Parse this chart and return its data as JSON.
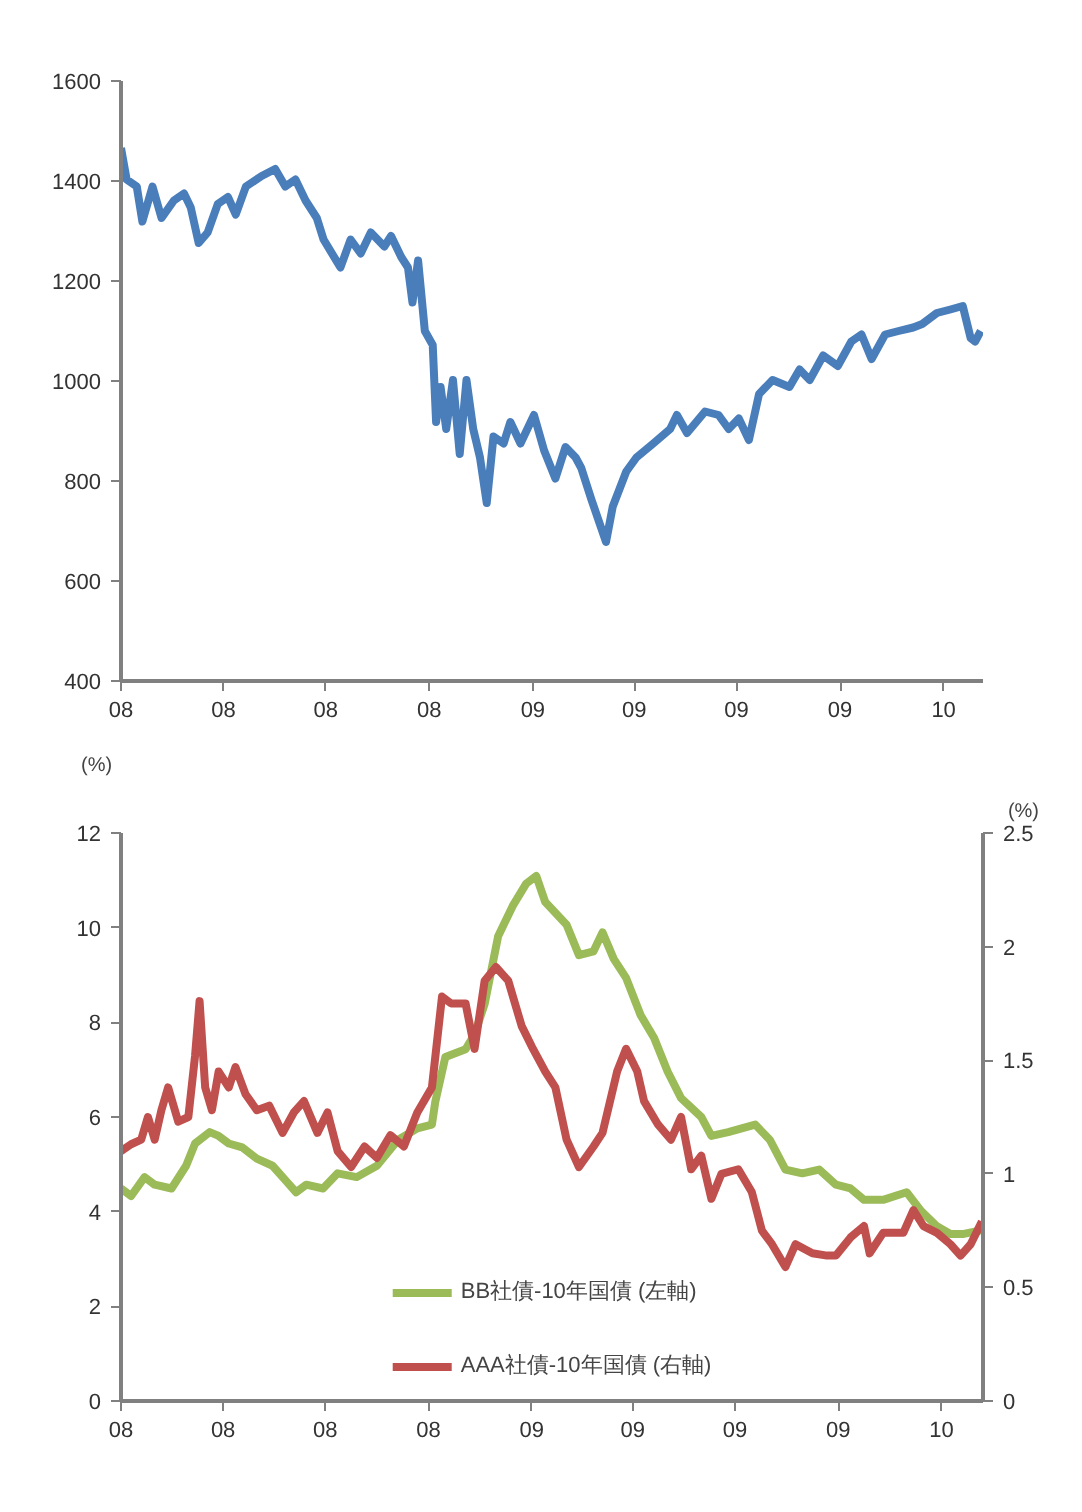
{
  "chart_data": [
    {
      "type": "line",
      "xlim": [
        "2008-01-01",
        "2010-02-05"
      ],
      "ylim": [
        400,
        1600
      ],
      "yticks": [
        400,
        600,
        800,
        1000,
        1200,
        1400,
        1600
      ],
      "xticks": [
        {
          "value": "2008-01-01",
          "label": "08"
        },
        {
          "value": "2008-04-01",
          "label": "08"
        },
        {
          "value": "2008-07-01",
          "label": "08"
        },
        {
          "value": "2008-10-01",
          "label": "08"
        },
        {
          "value": "2009-01-01",
          "label": "09"
        },
        {
          "value": "2009-04-01",
          "label": "09"
        },
        {
          "value": "2009-07-01",
          "label": "09"
        },
        {
          "value": "2009-10-01",
          "label": "09"
        },
        {
          "value": "2010-01-01",
          "label": "10"
        }
      ],
      "grid": false,
      "marker": "none",
      "line_style": "solid",
      "series": [
        {
          "color": "#4a7ebb",
          "x": [
            "2008-01-01",
            "2008-01-06",
            "2008-01-15",
            "2008-01-20",
            "2008-01-29",
            "2008-02-06",
            "2008-02-17",
            "2008-02-26",
            "2008-03-03",
            "2008-03-10",
            "2008-03-18",
            "2008-03-27",
            "2008-04-05",
            "2008-04-12",
            "2008-04-21",
            "2008-05-05",
            "2008-05-17",
            "2008-05-26",
            "2008-06-04",
            "2008-06-13",
            "2008-06-23",
            "2008-06-29",
            "2008-07-14",
            "2008-07-23",
            "2008-08-01",
            "2008-08-10",
            "2008-08-22",
            "2008-08-28",
            "2008-09-06",
            "2008-09-12",
            "2008-09-16",
            "2008-09-21",
            "2008-09-27",
            "2008-10-04",
            "2008-10-07",
            "2008-10-11",
            "2008-10-16",
            "2008-10-22",
            "2008-10-28",
            "2008-11-03",
            "2008-11-09",
            "2008-11-15",
            "2008-11-21",
            "2008-11-27",
            "2008-12-06",
            "2008-12-12",
            "2008-12-21",
            "2009-01-02",
            "2009-01-11",
            "2009-01-21",
            "2009-01-30",
            "2009-02-08",
            "2009-02-13",
            "2009-02-22",
            "2009-03-07",
            "2009-03-13",
            "2009-03-25",
            "2009-04-03",
            "2009-04-18",
            "2009-05-03",
            "2009-05-09",
            "2009-05-18",
            "2009-06-03",
            "2009-06-15",
            "2009-06-24",
            "2009-07-03",
            "2009-07-12",
            "2009-07-21",
            "2009-08-02",
            "2009-08-17",
            "2009-08-26",
            "2009-09-04",
            "2009-09-16",
            "2009-09-29",
            "2009-10-11",
            "2009-10-20",
            "2009-10-29",
            "2009-11-10",
            "2009-11-22",
            "2009-12-05",
            "2009-12-13",
            "2009-12-26",
            "2010-01-07",
            "2010-01-18",
            "2010-01-25",
            "2010-01-29",
            "2010-02-03"
          ],
          "values": [
            1466,
            1403,
            1389,
            1319,
            1389,
            1326,
            1361,
            1375,
            1347,
            1276,
            1297,
            1354,
            1368,
            1333,
            1389,
            1410,
            1424,
            1389,
            1403,
            1361,
            1326,
            1283,
            1227,
            1283,
            1255,
            1297,
            1269,
            1290,
            1248,
            1227,
            1157,
            1241,
            1100,
            1072,
            918,
            988,
            904,
            1002,
            854,
            1002,
            904,
            847,
            756,
            889,
            875,
            918,
            875,
            932,
            861,
            805,
            868,
            847,
            826,
            763,
            678,
            749,
            819,
            847,
            875,
            904,
            932,
            896,
            939,
            932,
            904,
            925,
            882,
            974,
            1002,
            988,
            1023,
            1002,
            1051,
            1030,
            1079,
            1093,
            1044,
            1093,
            1100,
            1107,
            1114,
            1136,
            1143,
            1150,
            1086,
            1079,
            1100
          ]
        }
      ]
    },
    {
      "type": "line",
      "xlim": [
        "2008-01-01",
        "2010-02-07"
      ],
      "ylim": [
        0,
        12
      ],
      "yticks": [
        0,
        2,
        4,
        6,
        8,
        10,
        12
      ],
      "y2lim": [
        0,
        2.5
      ],
      "y2ticks": [
        0,
        0.5,
        1,
        1.5,
        2,
        2.5
      ],
      "ylabel": "(%)",
      "y2label": "(%)",
      "xticks": [
        {
          "value": "2008-01-01",
          "label": "08"
        },
        {
          "value": "2008-04-01",
          "label": "08"
        },
        {
          "value": "2008-07-01",
          "label": "08"
        },
        {
          "value": "2008-10-01",
          "label": "08"
        },
        {
          "value": "2009-01-01",
          "label": "09"
        },
        {
          "value": "2009-04-01",
          "label": "09"
        },
        {
          "value": "2009-07-01",
          "label": "09"
        },
        {
          "value": "2009-10-01",
          "label": "09"
        },
        {
          "value": "2010-01-01",
          "label": "10"
        }
      ],
      "grid": false,
      "marker": "none",
      "line_style": "solid",
      "legend": "bottom",
      "series": [
        {
          "name": "BB社債-10年国債 (左軸)",
          "color": "#9bbb59",
          "x": [
            "2008-01-01",
            "2008-01-10",
            "2008-01-22",
            "2008-01-31",
            "2008-02-15",
            "2008-02-28",
            "2008-03-07",
            "2008-03-20",
            "2008-03-28",
            "2008-04-06",
            "2008-04-18",
            "2008-05-01",
            "2008-05-15",
            "2008-05-27",
            "2008-06-05",
            "2008-06-14",
            "2008-06-29",
            "2008-07-12",
            "2008-07-29",
            "2008-08-16",
            "2008-09-04",
            "2008-09-21",
            "2008-10-04",
            "2008-10-07",
            "2008-10-16",
            "2008-11-03",
            "2008-11-11",
            "2008-11-20",
            "2008-12-02",
            "2008-12-15",
            "2008-12-27",
            "2009-01-05",
            "2009-01-13",
            "2009-02-01",
            "2009-02-12",
            "2009-02-25",
            "2009-03-05",
            "2009-03-15",
            "2009-03-26",
            "2009-04-08",
            "2009-04-20",
            "2009-05-02",
            "2009-05-14",
            "2009-06-01",
            "2009-06-10",
            "2009-06-25",
            "2009-07-19",
            "2009-08-01",
            "2009-08-15",
            "2009-08-30",
            "2009-09-14",
            "2009-09-29",
            "2009-10-12",
            "2009-10-24",
            "2009-11-10",
            "2009-12-01",
            "2009-12-14",
            "2009-12-28",
            "2010-01-09",
            "2010-01-21",
            "2010-02-06"
          ],
          "values": [
            4.49,
            4.33,
            4.73,
            4.57,
            4.49,
            4.97,
            5.44,
            5.68,
            5.6,
            5.44,
            5.36,
            5.12,
            4.97,
            4.65,
            4.41,
            4.57,
            4.49,
            4.81,
            4.73,
            4.97,
            5.52,
            5.76,
            5.84,
            6.32,
            7.27,
            7.43,
            7.75,
            8.39,
            9.82,
            10.46,
            10.93,
            11.09,
            10.54,
            10.06,
            9.42,
            9.5,
            9.9,
            9.34,
            8.94,
            8.15,
            7.67,
            6.96,
            6.4,
            6.0,
            5.6,
            5.68,
            5.84,
            5.52,
            4.89,
            4.81,
            4.89,
            4.57,
            4.49,
            4.25,
            4.25,
            4.41,
            4.01,
            3.69,
            3.53,
            3.53,
            3.61
          ]
        },
        {
          "name": "AAA社債-10年国債 (右軸)",
          "color": "#c0504d",
          "axis": "y2",
          "x": [
            "2008-01-01",
            "2008-01-10",
            "2008-01-19",
            "2008-01-25",
            "2008-01-31",
            "2008-02-06",
            "2008-02-12",
            "2008-02-21",
            "2008-03-01",
            "2008-03-07",
            "2008-03-11",
            "2008-03-16",
            "2008-03-22",
            "2008-03-28",
            "2008-04-06",
            "2008-04-12",
            "2008-04-21",
            "2008-05-01",
            "2008-05-12",
            "2008-05-24",
            "2008-06-03",
            "2008-06-12",
            "2008-06-24",
            "2008-07-03",
            "2008-07-12",
            "2008-07-24",
            "2008-08-05",
            "2008-08-16",
            "2008-08-28",
            "2008-09-09",
            "2008-09-21",
            "2008-10-04",
            "2008-10-13",
            "2008-10-21",
            "2008-11-03",
            "2008-11-11",
            "2008-11-20",
            "2008-11-30",
            "2008-12-11",
            "2008-12-23",
            "2009-01-01",
            "2009-01-13",
            "2009-01-22",
            "2009-02-01",
            "2009-02-12",
            "2009-02-25",
            "2009-03-05",
            "2009-03-18",
            "2009-03-26",
            "2009-04-05",
            "2009-04-11",
            "2009-04-23",
            "2009-05-05",
            "2009-05-14",
            "2009-05-23",
            "2009-06-01",
            "2009-06-10",
            "2009-06-19",
            "2009-07-04",
            "2009-07-16",
            "2009-07-25",
            "2009-08-03",
            "2009-08-15",
            "2009-08-24",
            "2009-09-08",
            "2009-09-21",
            "2009-09-29",
            "2009-10-12",
            "2009-10-24",
            "2009-10-29",
            "2009-11-10",
            "2009-11-28",
            "2009-12-07",
            "2009-12-16",
            "2009-12-28",
            "2010-01-09",
            "2010-01-18",
            "2010-01-27",
            "2010-02-06"
          ],
          "values": [
            1.1,
            1.13,
            1.15,
            1.25,
            1.15,
            1.28,
            1.38,
            1.23,
            1.25,
            1.52,
            1.76,
            1.38,
            1.28,
            1.45,
            1.38,
            1.47,
            1.35,
            1.28,
            1.3,
            1.18,
            1.27,
            1.32,
            1.18,
            1.27,
            1.1,
            1.03,
            1.12,
            1.07,
            1.17,
            1.12,
            1.27,
            1.38,
            1.78,
            1.75,
            1.75,
            1.55,
            1.85,
            1.91,
            1.85,
            1.65,
            1.56,
            1.45,
            1.38,
            1.15,
            1.03,
            1.12,
            1.18,
            1.45,
            1.55,
            1.45,
            1.32,
            1.22,
            1.15,
            1.25,
            1.02,
            1.08,
            0.89,
            1.0,
            1.02,
            0.92,
            0.75,
            0.69,
            0.59,
            0.69,
            0.65,
            0.64,
            0.64,
            0.72,
            0.77,
            0.65,
            0.74,
            0.74,
            0.84,
            0.77,
            0.74,
            0.69,
            0.64,
            0.69,
            0.79
          ]
        }
      ]
    }
  ]
}
